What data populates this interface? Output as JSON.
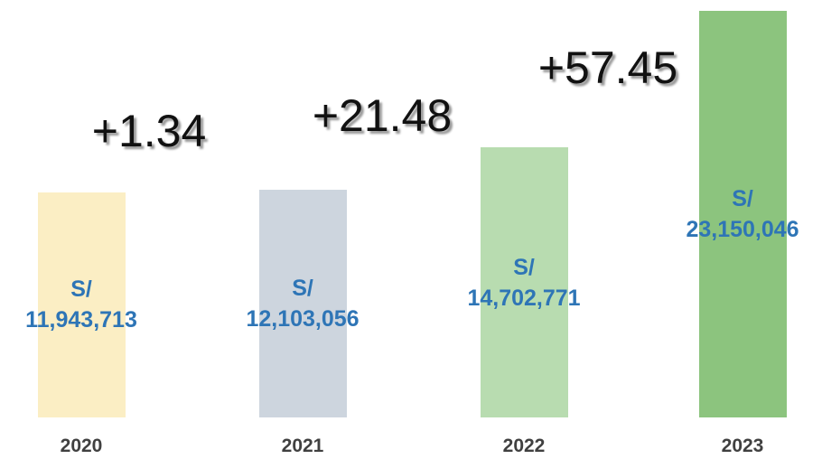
{
  "chart_data": {
    "type": "bar",
    "categories": [
      "2020",
      "2021",
      "2022",
      "2023"
    ],
    "values": [
      11943713,
      12103056,
      14702771,
      23150046
    ],
    "value_labels": [
      "S/\n11,943,713",
      "S/\n12,103,056",
      "S/\n14,702,771",
      "S/\n23,150,046"
    ],
    "colors": [
      "#fbeec4",
      "#cdd5de",
      "#b8dcb0",
      "#8cc47e"
    ],
    "ylim": [
      -2000000,
      23500000
    ],
    "annotations": [
      "+1.34",
      "+21.48",
      "+57.45"
    ]
  }
}
